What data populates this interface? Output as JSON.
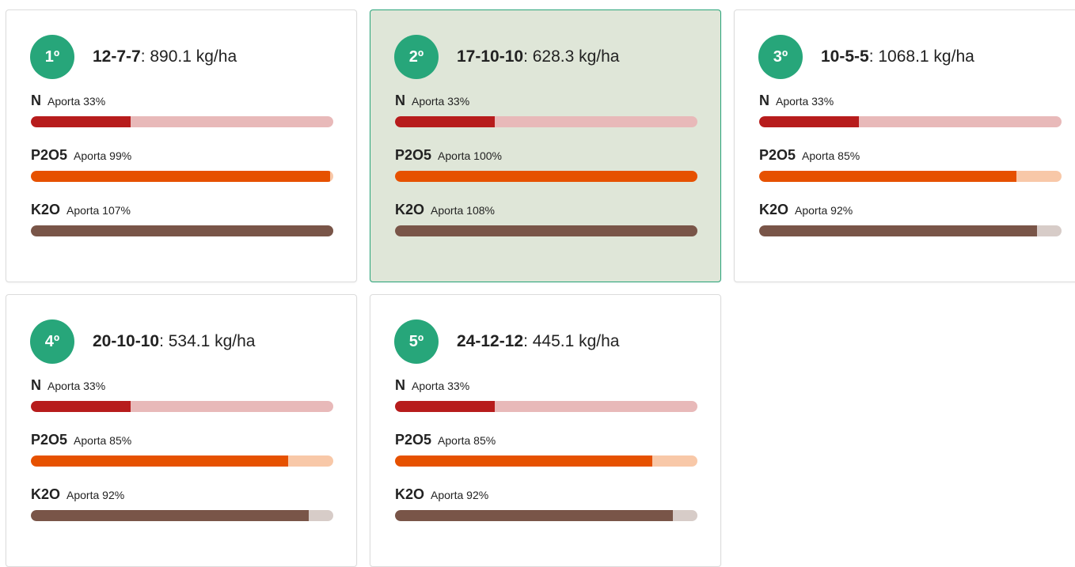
{
  "bar_colors": [
    {
      "fill": "#b71c1c",
      "track": "#e8b9b9"
    },
    {
      "fill": "#e65100",
      "track": "#f8c8a8"
    },
    {
      "fill": "#795548",
      "track": "#d7ccc8"
    }
  ],
  "cards": [
    {
      "rank": "1º",
      "name": "12-7-7",
      "rate": ": 890.1 kg/ha",
      "selected": false,
      "nutrients": [
        {
          "name": "N",
          "label": "Aporta 33%",
          "value": 33
        },
        {
          "name": "P2O5",
          "label": "Aporta 99%",
          "value": 99
        },
        {
          "name": "K2O",
          "label": "Aporta 107%",
          "value": 107
        }
      ]
    },
    {
      "rank": "2º",
      "name": "17-10-10",
      "rate": ": 628.3 kg/ha",
      "selected": true,
      "nutrients": [
        {
          "name": "N",
          "label": "Aporta 33%",
          "value": 33
        },
        {
          "name": "P2O5",
          "label": "Aporta 100%",
          "value": 100
        },
        {
          "name": "K2O",
          "label": "Aporta 108%",
          "value": 108
        }
      ]
    },
    {
      "rank": "3º",
      "name": "10-5-5",
      "rate": ": 1068.1 kg/ha",
      "selected": false,
      "nutrients": [
        {
          "name": "N",
          "label": "Aporta 33%",
          "value": 33
        },
        {
          "name": "P2O5",
          "label": "Aporta 85%",
          "value": 85
        },
        {
          "name": "K2O",
          "label": "Aporta 92%",
          "value": 92
        }
      ]
    },
    {
      "rank": "4º",
      "name": "20-10-10",
      "rate": ": 534.1 kg/ha",
      "selected": false,
      "nutrients": [
        {
          "name": "N",
          "label": "Aporta 33%",
          "value": 33
        },
        {
          "name": "P2O5",
          "label": "Aporta 85%",
          "value": 85
        },
        {
          "name": "K2O",
          "label": "Aporta 92%",
          "value": 92
        }
      ]
    },
    {
      "rank": "5º",
      "name": "24-12-12",
      "rate": ": 445.1 kg/ha",
      "selected": false,
      "nutrients": [
        {
          "name": "N",
          "label": "Aporta 33%",
          "value": 33
        },
        {
          "name": "P2O5",
          "label": "Aporta 85%",
          "value": 85
        },
        {
          "name": "K2O",
          "label": "Aporta 92%",
          "value": 92
        }
      ]
    }
  ]
}
